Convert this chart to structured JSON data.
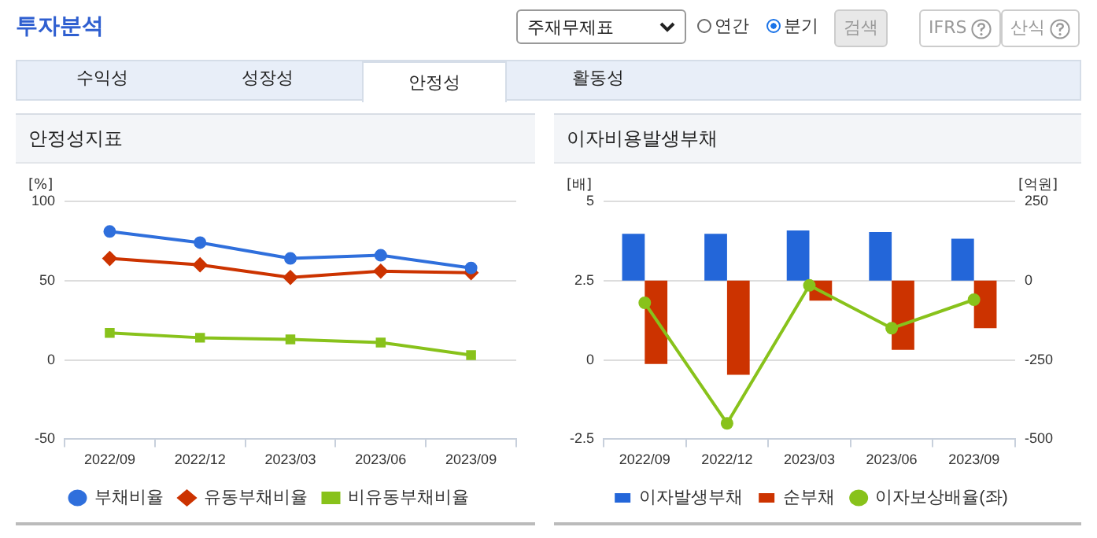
{
  "chart_data": [
    {
      "type": "line",
      "title": "안정성지표",
      "ylabel": "[%]",
      "categories": [
        "2022/09",
        "2022/12",
        "2023/03",
        "2023/06",
        "2023/09"
      ],
      "series": [
        {
          "name": "부채비율",
          "color": "#2f6fdc",
          "marker": "circle",
          "values": [
            81,
            74,
            64,
            66,
            58
          ]
        },
        {
          "name": "유동부채비율",
          "color": "#cc3300",
          "marker": "diamond",
          "values": [
            64,
            60,
            52,
            56,
            55
          ]
        },
        {
          "name": "비유동부채비율",
          "color": "#88c21b",
          "marker": "square",
          "values": [
            17,
            14,
            13,
            11,
            3
          ]
        }
      ],
      "ylim": [
        -50,
        100
      ],
      "yticks": [
        -50,
        0,
        50,
        100
      ],
      "grid": "y",
      "legend": "bottom",
      "annotations": [
        "투자분석",
        "주재무제표",
        "연간",
        "분기",
        "검색",
        "IFRS",
        "산식",
        "수익성",
        "성장성",
        "안정성",
        "활동성"
      ]
    },
    {
      "type": "bar",
      "title": "이자비용발생부채",
      "ylabel": "[배]",
      "y2label": "[억원]",
      "categories": [
        "2022/09",
        "2022/12",
        "2023/03",
        "2023/06",
        "2023/09"
      ],
      "series": [
        {
          "name": "이자발생부채",
          "color": "#2366d9",
          "axis": "y2",
          "values": [
            148,
            148,
            158,
            153,
            132
          ]
        },
        {
          "name": "순부채",
          "color": "#cc3300",
          "axis": "y2",
          "values": [
            -263,
            -297,
            -63,
            -218,
            -150
          ]
        },
        {
          "name": "이자보상배율(좌)",
          "type": "line",
          "color": "#88c21b",
          "marker": "circle",
          "values": [
            1.8,
            -2.0,
            2.35,
            1.0,
            1.9
          ]
        }
      ],
      "ylim": [
        -2.5,
        5
      ],
      "yticks": [
        -2.5,
        0,
        2.5,
        5
      ],
      "y2lim": [
        -500,
        250
      ],
      "y2ticks": [
        -500,
        -250,
        0,
        250
      ],
      "grid": "y",
      "legend": "bottom"
    }
  ]
}
